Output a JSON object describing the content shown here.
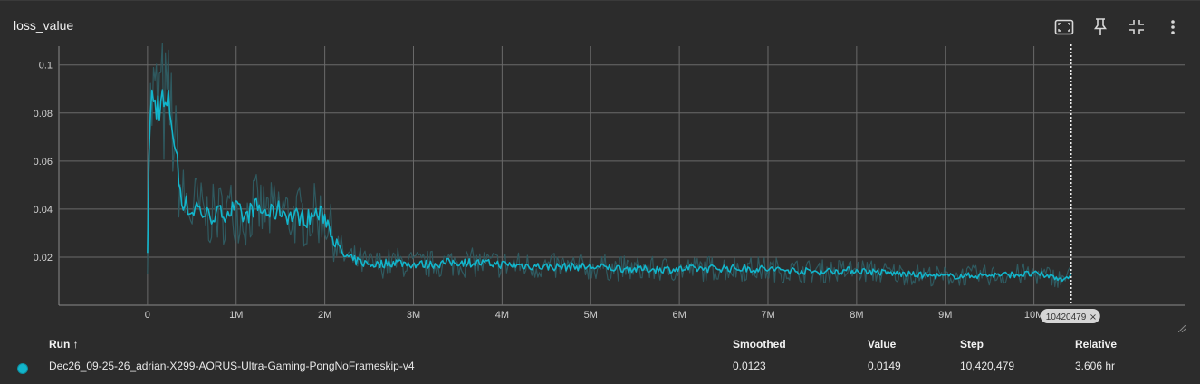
{
  "header": {
    "title": "loss_value",
    "actions": [
      {
        "name": "fit-domain-button",
        "icon": "fit-to-data-icon"
      },
      {
        "name": "pin-button",
        "icon": "pin-icon"
      },
      {
        "name": "collapse-button",
        "icon": "collapse-icon"
      },
      {
        "name": "more-menu-button",
        "icon": "more-vert-icon"
      }
    ]
  },
  "colors": {
    "series": "#12b5cb",
    "raw": "#2f5a60",
    "grid": "#6a6a6a",
    "background": "#2c2c2c"
  },
  "chart_data": {
    "type": "line",
    "title": "loss_value",
    "xlabel": "",
    "ylabel": "",
    "xlim": [
      -1000000,
      11700000
    ],
    "ylim": [
      0.0,
      0.1078
    ],
    "x_ticks": [
      0,
      1000000,
      2000000,
      3000000,
      4000000,
      5000000,
      6000000,
      7000000,
      8000000,
      9000000,
      10000000
    ],
    "x_tick_labels": [
      "0",
      "1M",
      "2M",
      "3M",
      "4M",
      "5M",
      "6M",
      "7M",
      "8M",
      "9M",
      "10M"
    ],
    "y_ticks": [
      0.02,
      0.04,
      0.06,
      0.08,
      0.1
    ],
    "y_tick_labels": [
      "0.02",
      "0.04",
      "0.06",
      "0.08",
      "0.1"
    ],
    "grid": true,
    "hover_step": 10420479,
    "hover_step_label": "10420479",
    "series": [
      {
        "name": "Dec26_09-25-26_adrian-X299-AORUS-Ultra-Gaming-PongNoFrameskip-v4",
        "color": "#12b5cb",
        "x": [
          0,
          20000,
          50000,
          100000,
          150000,
          200000,
          250000,
          300000,
          330000,
          380000,
          450000,
          500000,
          550000,
          600000,
          700000,
          800000,
          900000,
          1000000,
          1100000,
          1200000,
          1300000,
          1400000,
          1500000,
          1600000,
          1700000,
          1800000,
          1900000,
          2000000,
          2050000,
          2100000,
          2150000,
          2200000,
          2300000,
          2400000,
          2500000,
          2600000,
          2800000,
          3000000,
          3200000,
          3500000,
          4000000,
          4500000,
          5000000,
          5500000,
          6000000,
          6500000,
          7000000,
          7500000,
          8000000,
          8500000,
          9000000,
          9500000,
          10000000,
          10200000,
          10300000,
          10420479
        ],
        "values": [
          0.02,
          0.075,
          0.085,
          0.082,
          0.086,
          0.081,
          0.083,
          0.07,
          0.06,
          0.045,
          0.041,
          0.038,
          0.042,
          0.039,
          0.037,
          0.038,
          0.039,
          0.04,
          0.036,
          0.041,
          0.039,
          0.038,
          0.04,
          0.037,
          0.037,
          0.036,
          0.038,
          0.037,
          0.033,
          0.028,
          0.024,
          0.021,
          0.019,
          0.018,
          0.017,
          0.017,
          0.018,
          0.017,
          0.017,
          0.018,
          0.017,
          0.016,
          0.016,
          0.015,
          0.015,
          0.0155,
          0.015,
          0.014,
          0.0145,
          0.013,
          0.012,
          0.0125,
          0.013,
          0.012,
          0.011,
          0.0123
        ]
      }
    ]
  },
  "table": {
    "headers": {
      "run": "Run ↑",
      "smoothed": "Smoothed",
      "value": "Value",
      "step": "Step",
      "relative": "Relative"
    },
    "rows": [
      {
        "run": "Dec26_09-25-26_adrian-X299-AORUS-Ultra-Gaming-PongNoFrameskip-v4",
        "smoothed": "0.0123",
        "value": "0.0149",
        "step": "10,420,479",
        "relative": "3.606 hr"
      }
    ]
  }
}
